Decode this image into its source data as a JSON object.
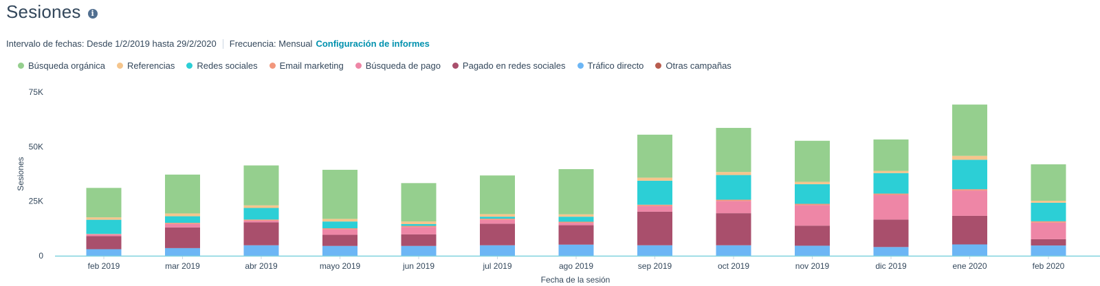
{
  "header": {
    "title": "Sesiones",
    "info_icon": "info-icon"
  },
  "meta": {
    "date_range_label": "Intervalo de fechas:",
    "date_range_value": "Desde 1/2/2019 hasta 29/2/2020",
    "frequency_label": "Frecuencia:",
    "frequency_value": "Mensual",
    "report_settings_link": "Configuración de informes"
  },
  "chart_data": {
    "type": "bar",
    "stacked": true,
    "xlabel": "Fecha de la sesión",
    "ylabel": "Sesiones",
    "ylim": [
      0,
      75000
    ],
    "yticks": [
      0,
      25000,
      50000,
      75000
    ],
    "ytick_labels": [
      "0",
      "25K",
      "50K",
      "75K"
    ],
    "grid": false,
    "legend_position": "top",
    "categories": [
      "feb 2019",
      "mar 2019",
      "abr 2019",
      "mayo 2019",
      "jun 2019",
      "jul 2019",
      "ago 2019",
      "sep 2019",
      "oct 2019",
      "nov 2019",
      "dic 2019",
      "ene 2020",
      "feb 2020"
    ],
    "series": [
      {
        "name": "Tráfico directo",
        "color": "#6cb6f5",
        "values": [
          3000,
          3500,
          4800,
          4500,
          4500,
          4800,
          5100,
          4800,
          4800,
          4600,
          4000,
          5200,
          4700
        ]
      },
      {
        "name": "Pagado en redes sociales",
        "color": "#a94f6c",
        "values": [
          6000,
          9500,
          10500,
          5100,
          5300,
          9900,
          8900,
          15400,
          14700,
          9200,
          12600,
          13100,
          2900
        ]
      },
      {
        "name": "Búsqueda de pago",
        "color": "#ee86a6",
        "values": [
          800,
          1600,
          800,
          2500,
          3400,
          1800,
          1100,
          2600,
          5600,
          9400,
          11300,
          11600,
          7600
        ]
      },
      {
        "name": "Email marketing",
        "color": "#f2977c",
        "values": [
          200,
          500,
          500,
          500,
          500,
          500,
          500,
          600,
          600,
          600,
          600,
          600,
          600
        ]
      },
      {
        "name": "Redes sociales",
        "color": "#2ccfd6",
        "values": [
          6500,
          3000,
          5300,
          3100,
          800,
          900,
          2300,
          11000,
          11300,
          9000,
          9400,
          13500,
          8500
        ]
      },
      {
        "name": "Referencias",
        "color": "#f5c58c",
        "values": [
          1100,
          1300,
          1200,
          1200,
          1200,
          1200,
          1100,
          1400,
          1400,
          1100,
          1000,
          1800,
          900
        ]
      },
      {
        "name": "Búsqueda orgánica",
        "color": "#95cf8e",
        "values": [
          13500,
          17800,
          18300,
          22500,
          17600,
          17700,
          20700,
          19700,
          20200,
          18800,
          14400,
          23500,
          16700
        ]
      },
      {
        "name": "Otras campañas",
        "color": "#b85c4e",
        "values": [
          0,
          0,
          0,
          0,
          0,
          0,
          0,
          0,
          0,
          0,
          0,
          0,
          0
        ]
      }
    ]
  },
  "legend_order": [
    "Búsqueda orgánica",
    "Referencias",
    "Redes sociales",
    "Email marketing",
    "Búsqueda de pago",
    "Pagado en redes sociales",
    "Tráfico directo",
    "Otras campañas"
  ]
}
